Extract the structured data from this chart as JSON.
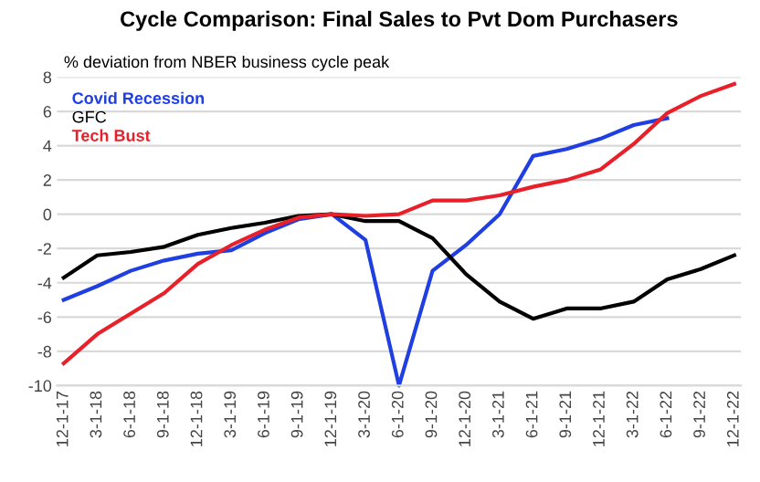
{
  "chart_data": {
    "type": "line",
    "title": "Cycle Comparison: Final Sales to Pvt Dom Purchasers",
    "ylabel": "% deviation from NBER business cycle peak",
    "categories": [
      "12-1-17",
      "3-1-18",
      "6-1-18",
      "9-1-18",
      "12-1-18",
      "3-1-19",
      "6-1-19",
      "9-1-19",
      "12-1-19",
      "3-1-20",
      "6-1-20",
      "9-1-20",
      "12-1-20",
      "3-1-21",
      "6-1-21",
      "9-1-21",
      "12-1-21",
      "3-1-22",
      "6-1-22",
      "9-1-22",
      "12-1-22"
    ],
    "series": [
      {
        "name": "Covid Recession",
        "color": "#1f3fe0",
        "values": [
          -5.0,
          -4.2,
          -3.3,
          -2.7,
          -2.3,
          -2.1,
          -1.1,
          -0.3,
          0,
          -1.5,
          -10,
          -3.3,
          -1.8,
          0.0,
          3.4,
          3.8,
          4.4,
          5.2,
          5.6,
          null,
          null
        ]
      },
      {
        "name": "GFC",
        "color": "#000000",
        "values": [
          -3.7,
          -2.4,
          -2.2,
          -1.9,
          -1.2,
          -0.8,
          -0.5,
          -0.1,
          0,
          -0.4,
          -0.4,
          -1.4,
          -3.5,
          -5.1,
          -6.1,
          -5.5,
          -5.5,
          -5.1,
          -3.8,
          -3.2,
          -2.4
        ]
      },
      {
        "name": "Tech Bust",
        "color": "#e8202a",
        "values": [
          -8.7,
          -7.0,
          -5.8,
          -4.6,
          -2.9,
          -1.8,
          -0.9,
          -0.2,
          0,
          -0.1,
          0,
          0.8,
          0.8,
          1.1,
          1.6,
          2.0,
          2.6,
          4.1,
          5.9,
          6.9,
          7.6
        ]
      }
    ],
    "ylim": [
      -10,
      8
    ],
    "yticks": [
      -10,
      -8,
      -6,
      -4,
      -2,
      0,
      2,
      4,
      6,
      8
    ],
    "grid": "y",
    "legend": "top left"
  }
}
